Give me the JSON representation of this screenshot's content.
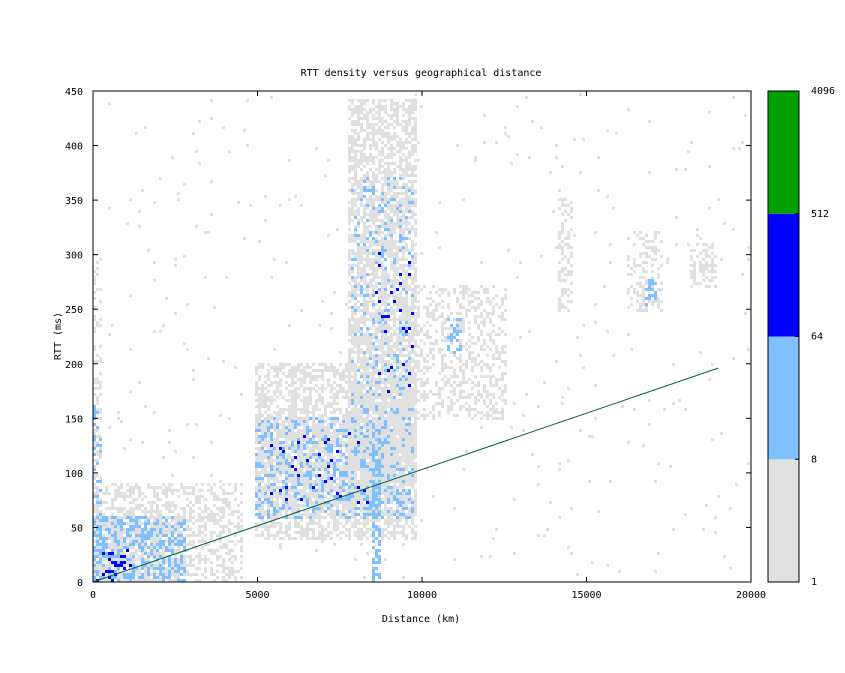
{
  "chart_data": {
    "type": "heatmap",
    "title": "RTT density versus geographical distance",
    "xlabel": "Distance (km)",
    "ylabel": "RTT (ms)",
    "xlim": [
      0,
      20000
    ],
    "ylim": [
      0,
      450
    ],
    "x_ticks": [
      0,
      5000,
      10000,
      15000,
      20000
    ],
    "y_ticks": [
      0,
      50,
      100,
      150,
      200,
      250,
      300,
      350,
      400,
      450
    ],
    "grid": false,
    "colorbar": {
      "scale": "log",
      "ticks": [
        1,
        8,
        64,
        512,
        4096
      ],
      "bands": [
        {
          "min": 1,
          "max": 8,
          "color": "#e0e0e0"
        },
        {
          "min": 8,
          "max": 64,
          "color": "#80c0ff"
        },
        {
          "min": 64,
          "max": 512,
          "color": "#0000ff"
        },
        {
          "min": 512,
          "max": 4096,
          "color": "#00a000"
        }
      ]
    },
    "reference_line": {
      "color": "#006040",
      "points": [
        [
          0,
          0
        ],
        [
          19000,
          196
        ]
      ]
    },
    "regions": [
      {
        "x0": 0,
        "x1": 2800,
        "y0": 0,
        "y1": 60,
        "level": 2,
        "density": 0.75
      },
      {
        "x0": 0,
        "x1": 1200,
        "y0": 0,
        "y1": 30,
        "level": 3,
        "density": 0.18
      },
      {
        "x0": 0,
        "x1": 4500,
        "y0": 0,
        "y1": 90,
        "level": 1,
        "density": 0.45
      },
      {
        "x0": 0,
        "x1": 200,
        "y0": 0,
        "y1": 170,
        "level": 2,
        "density": 0.35
      },
      {
        "x0": 0,
        "x1": 200,
        "y0": 0,
        "y1": 300,
        "level": 1,
        "density": 0.3
      },
      {
        "x0": 5000,
        "x1": 9700,
        "y0": 60,
        "y1": 150,
        "level": 2,
        "density": 0.65
      },
      {
        "x0": 5400,
        "x1": 9000,
        "y0": 70,
        "y1": 140,
        "level": 3,
        "density": 0.08
      },
      {
        "x0": 5000,
        "x1": 9800,
        "y0": 40,
        "y1": 200,
        "level": 1,
        "density": 0.55
      },
      {
        "x0": 7900,
        "x1": 9700,
        "y0": 100,
        "y1": 370,
        "level": 2,
        "density": 0.3
      },
      {
        "x0": 8600,
        "x1": 9700,
        "y0": 170,
        "y1": 300,
        "level": 3,
        "density": 0.08
      },
      {
        "x0": 7800,
        "x1": 9800,
        "y0": 90,
        "y1": 440,
        "level": 1,
        "density": 0.6
      },
      {
        "x0": 8540,
        "x1": 8700,
        "y0": 0,
        "y1": 130,
        "level": 2,
        "density": 0.6
      },
      {
        "x0": 9600,
        "x1": 12500,
        "y0": 150,
        "y1": 270,
        "level": 1,
        "density": 0.35
      },
      {
        "x0": 10800,
        "x1": 11200,
        "y0": 210,
        "y1": 240,
        "level": 2,
        "density": 0.4
      },
      {
        "x0": 14200,
        "x1": 14500,
        "y0": 250,
        "y1": 350,
        "level": 1,
        "density": 0.3
      },
      {
        "x0": 16300,
        "x1": 17300,
        "y0": 250,
        "y1": 320,
        "level": 1,
        "density": 0.35
      },
      {
        "x0": 16800,
        "x1": 17100,
        "y0": 255,
        "y1": 275,
        "level": 2,
        "density": 0.5
      },
      {
        "x0": 18200,
        "x1": 18900,
        "y0": 270,
        "y1": 310,
        "level": 1,
        "density": 0.35
      },
      {
        "x0": 500,
        "x1": 20000,
        "y0": 0,
        "y1": 450,
        "level": 1,
        "density": 0.012
      }
    ]
  }
}
